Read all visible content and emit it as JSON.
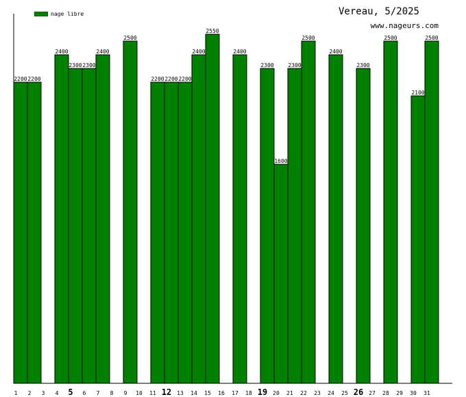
{
  "chart_data": {
    "type": "bar",
    "title": "Vereau, 5/2025",
    "subtitle": "www.nageurs.com",
    "legend": [
      "nage libre"
    ],
    "legend_position": "top-left",
    "bar_color": "#008000",
    "ylim": [
      0,
      2800
    ],
    "categories": [
      "1",
      "2",
      "3",
      "4",
      "5",
      "6",
      "7",
      "8",
      "9",
      "10",
      "11",
      "12",
      "13",
      "14",
      "15",
      "16",
      "17",
      "18",
      "19",
      "20",
      "21",
      "22",
      "23",
      "24",
      "25",
      "26",
      "27",
      "28",
      "29",
      "30",
      "31"
    ],
    "bold_categories": [
      "5",
      "12",
      "19",
      "26"
    ],
    "series": [
      {
        "name": "nage libre",
        "values": [
          2200,
          2200,
          null,
          2400,
          2300,
          2300,
          2400,
          null,
          2500,
          null,
          2200,
          2200,
          2200,
          2400,
          2550,
          null,
          2400,
          null,
          2300,
          1600,
          2300,
          2500,
          null,
          2400,
          null,
          2300,
          null,
          2500,
          null,
          2100,
          2500
        ]
      }
    ]
  }
}
